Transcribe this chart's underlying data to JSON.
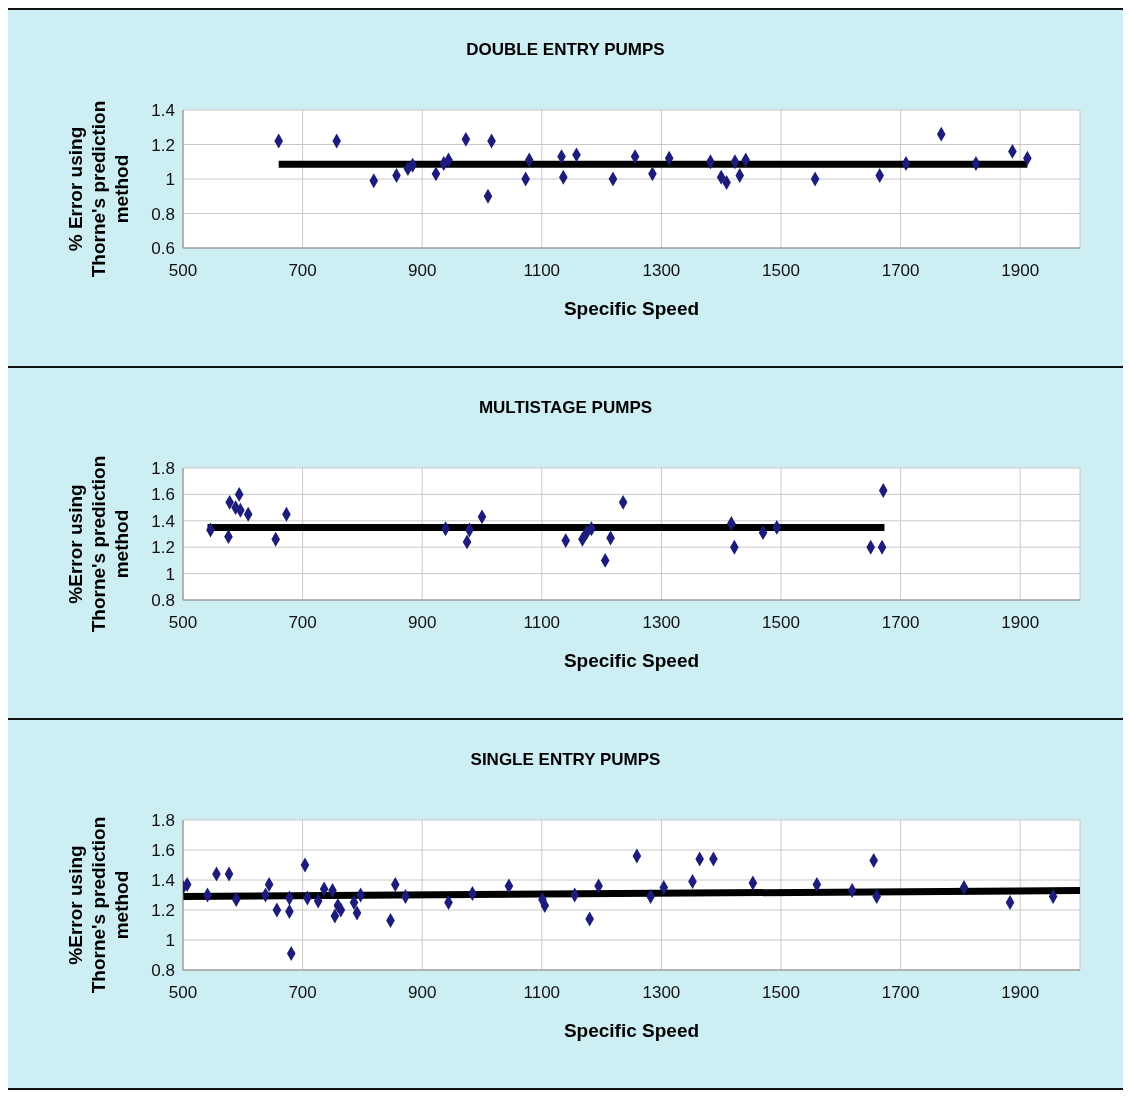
{
  "chart_data": [
    {
      "type": "scatter",
      "title": "DOUBLE ENTRY PUMPS",
      "xlabel": "Specific Speed",
      "ylabel": "% Error using Thorne's prediction method",
      "xlim": [
        500,
        2000
      ],
      "xticks": [
        500,
        700,
        900,
        1100,
        1300,
        1500,
        1700,
        1900
      ],
      "ylim": [
        0.6,
        1.4
      ],
      "yticks": [
        0.6,
        0.8,
        1,
        1.2,
        1.4
      ],
      "grid": true,
      "legend": false,
      "series": [
        {
          "marker": "diamond",
          "color": "#1c1c7c",
          "x": [
            660,
            757,
            819,
            857,
            876,
            884,
            923,
            936,
            944,
            973,
            1010,
            1016,
            1073,
            1079,
            1133,
            1136,
            1158,
            1219,
            1256,
            1285,
            1313,
            1382,
            1400,
            1409,
            1423,
            1431,
            1441,
            1557,
            1665,
            1709,
            1768,
            1826,
            1887,
            1912
          ],
          "values": [
            1.22,
            1.22,
            0.99,
            1.02,
            1.06,
            1.08,
            1.03,
            1.09,
            1.11,
            1.23,
            0.9,
            1.22,
            1.0,
            1.11,
            1.13,
            1.01,
            1.14,
            1.0,
            1.13,
            1.03,
            1.12,
            1.1,
            1.01,
            0.98,
            1.1,
            1.02,
            1.11,
            1.0,
            1.02,
            1.09,
            1.26,
            1.09,
            1.16,
            1.12
          ]
        },
        {
          "type": "line",
          "color": "#000000",
          "line_style": "solid",
          "x": [
            660,
            1912
          ],
          "values": [
            1.085,
            1.085
          ]
        }
      ]
    },
    {
      "type": "scatter",
      "title": "MULTISTAGE PUMPS",
      "xlabel": "Specific Speed",
      "ylabel": "%Error using Thorne's prediction method",
      "xlim": [
        500,
        2000
      ],
      "xticks": [
        500,
        700,
        900,
        1100,
        1300,
        1500,
        1700,
        1900
      ],
      "ylim": [
        0.8,
        1.8
      ],
      "yticks": [
        0.8,
        1,
        1.2,
        1.4,
        1.6,
        1.8
      ],
      "grid": true,
      "legend": false,
      "series": [
        {
          "marker": "diamond",
          "color": "#1c1c7c",
          "x": [
            546,
            576,
            578,
            588,
            594,
            596,
            609,
            655,
            673,
            939,
            975,
            979,
            1000,
            1140,
            1168,
            1175,
            1183,
            1206,
            1215,
            1236,
            1417,
            1422,
            1470,
            1493,
            1650,
            1669,
            1671
          ],
          "values": [
            1.33,
            1.28,
            1.54,
            1.5,
            1.6,
            1.48,
            1.45,
            1.26,
            1.45,
            1.34,
            1.24,
            1.33,
            1.43,
            1.25,
            1.26,
            1.31,
            1.34,
            1.1,
            1.27,
            1.54,
            1.38,
            1.2,
            1.31,
            1.35,
            1.2,
            1.2,
            1.63
          ]
        },
        {
          "type": "line",
          "color": "#000000",
          "line_style": "solid",
          "x": [
            541,
            1673
          ],
          "values": [
            1.35,
            1.35
          ]
        }
      ]
    },
    {
      "type": "scatter",
      "title": "SINGLE ENTRY PUMPS",
      "xlabel": "Specific Speed",
      "ylabel": "%Error using Thorne's prediction method",
      "xlim": [
        500,
        2000
      ],
      "xticks": [
        500,
        700,
        900,
        1100,
        1300,
        1500,
        1700,
        1900
      ],
      "ylim": [
        0.8,
        1.8
      ],
      "yticks": [
        0.8,
        1,
        1.2,
        1.4,
        1.6,
        1.8
      ],
      "grid": true,
      "legend": false,
      "series": [
        {
          "marker": "diamond",
          "color": "#1c1c7c",
          "x": [
            500,
            507,
            541,
            556,
            577,
            589,
            638,
            644,
            657,
            678,
            678,
            681,
            704,
            708,
            726,
            736,
            750,
            754,
            759,
            764,
            786,
            791,
            797,
            847,
            855,
            872,
            944,
            984,
            1045,
            1101,
            1105,
            1155,
            1180,
            1195,
            1259,
            1282,
            1304,
            1352,
            1364,
            1387,
            1453,
            1560,
            1619,
            1655,
            1660,
            1806,
            1883,
            1955
          ],
          "values": [
            1.35,
            1.37,
            1.3,
            1.44,
            1.44,
            1.27,
            1.3,
            1.37,
            1.2,
            1.19,
            1.28,
            0.91,
            1.5,
            1.28,
            1.26,
            1.34,
            1.33,
            1.16,
            1.23,
            1.2,
            1.25,
            1.18,
            1.3,
            1.13,
            1.37,
            1.29,
            1.25,
            1.31,
            1.36,
            1.27,
            1.23,
            1.3,
            1.14,
            1.36,
            1.56,
            1.29,
            1.35,
            1.39,
            1.54,
            1.54,
            1.38,
            1.37,
            1.33,
            1.53,
            1.29,
            1.35,
            1.25,
            1.29
          ]
        },
        {
          "type": "line",
          "color": "#000000",
          "line_style": "solid",
          "x": [
            500,
            2000
          ],
          "values": [
            1.29,
            1.33
          ]
        }
      ]
    }
  ]
}
